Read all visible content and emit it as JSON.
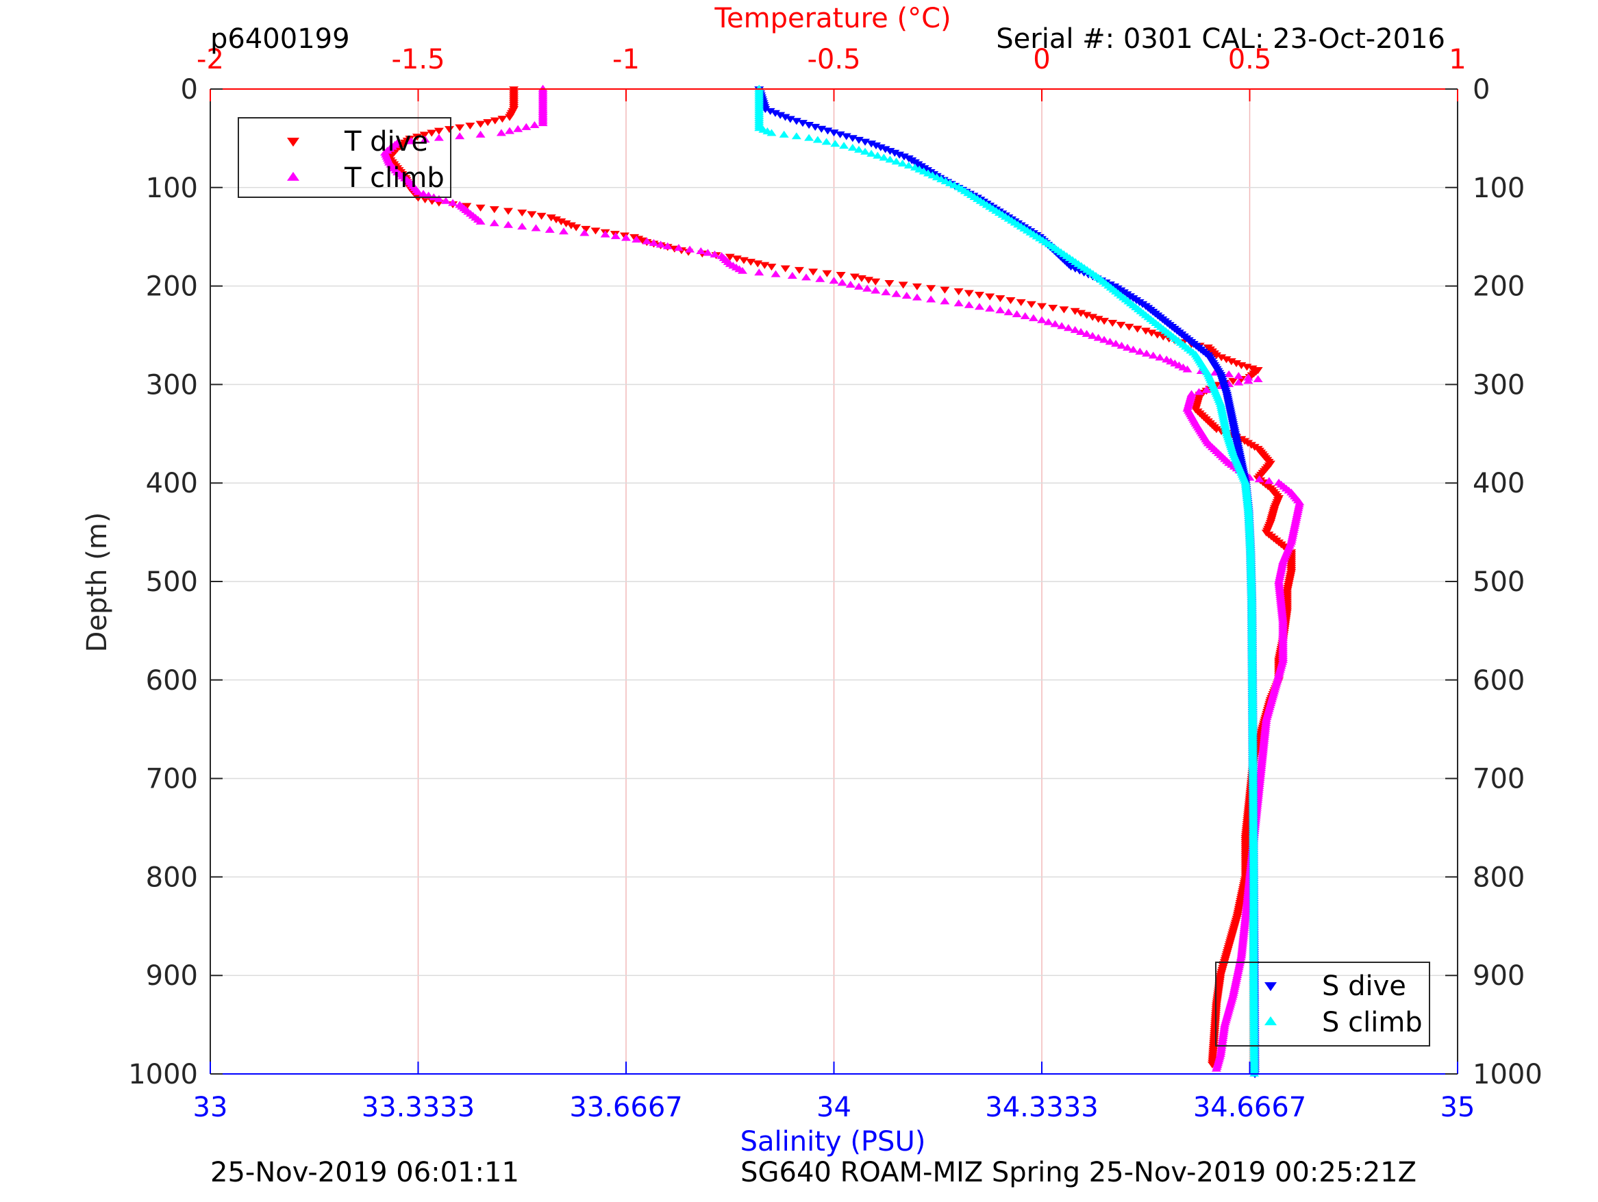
{
  "header": {
    "dive_id": "p6400199",
    "serial": "Serial #: 0301  CAL: 23-Oct-2016"
  },
  "footer": {
    "left": "25-Nov-2019 06:01:11",
    "right": "SG640 ROAM-MIZ Spring 25-Nov-2019 00:25:21Z"
  },
  "colors": {
    "t_dive": "#ff0000",
    "t_climb": "#ff00ff",
    "s_dive": "#0000ff",
    "s_climb": "#00ffff",
    "temp_axis": "#ff0000",
    "sal_axis": "#0000ff",
    "depth_axis": "#262626"
  },
  "chart_data": {
    "type": "scatter",
    "title": "",
    "top_axis": {
      "label": "Temperature (°C)",
      "range": [
        -2,
        1
      ],
      "ticks": [
        -2,
        -1.5,
        -1,
        -0.5,
        0,
        0.5,
        1
      ],
      "tick_labels": [
        "-2",
        "-1.5",
        "-1",
        "-0.5",
        "0",
        "0.5",
        "1"
      ]
    },
    "bottom_axis": {
      "label": "Salinity (PSU)",
      "range": [
        33,
        35
      ],
      "ticks": [
        33,
        33.3333,
        33.6667,
        34,
        34.3333,
        34.6667,
        35
      ],
      "tick_labels": [
        "33",
        "33.3333",
        "33.6667",
        "34",
        "34.3333",
        "34.6667",
        "35"
      ]
    },
    "y_axis": {
      "label": "Depth (m)",
      "range": [
        0,
        1000
      ],
      "reversed": true,
      "ticks": [
        0,
        100,
        200,
        300,
        400,
        500,
        600,
        700,
        800,
        900,
        1000
      ],
      "tick_labels": [
        "0",
        "100",
        "200",
        "300",
        "400",
        "500",
        "600",
        "700",
        "800",
        "900",
        "1000"
      ]
    },
    "grid": "vertical, temperature axis",
    "legend_temperature": {
      "placement": "top-left",
      "entries": [
        "T dive",
        "T climb"
      ]
    },
    "legend_salinity": {
      "placement": "bottom-right",
      "entries": [
        "S dive",
        "S climb"
      ]
    },
    "series": [
      {
        "name": "T dive",
        "axis": "temperature",
        "marker": "triangle-down",
        "points": [
          [
            -1.27,
            0
          ],
          [
            -1.27,
            10
          ],
          [
            -1.27,
            20
          ],
          [
            -1.28,
            28
          ],
          [
            -1.35,
            35
          ],
          [
            -1.45,
            42
          ],
          [
            -1.52,
            50
          ],
          [
            -1.55,
            60
          ],
          [
            -1.57,
            70
          ],
          [
            -1.55,
            80
          ],
          [
            -1.53,
            90
          ],
          [
            -1.52,
            100
          ],
          [
            -1.5,
            110
          ],
          [
            -1.45,
            115
          ],
          [
            -1.35,
            120
          ],
          [
            -1.25,
            125
          ],
          [
            -1.18,
            130
          ],
          [
            -1.12,
            140
          ],
          [
            -1.05,
            145
          ],
          [
            -0.98,
            150
          ],
          [
            -0.95,
            155
          ],
          [
            -0.9,
            160
          ],
          [
            -0.85,
            165
          ],
          [
            -0.75,
            170
          ],
          [
            -0.7,
            175
          ],
          [
            -0.65,
            180
          ],
          [
            -0.55,
            185
          ],
          [
            -0.45,
            190
          ],
          [
            -0.4,
            195
          ],
          [
            -0.3,
            200
          ],
          [
            -0.2,
            205
          ],
          [
            -0.1,
            212
          ],
          [
            0.0,
            220
          ],
          [
            0.08,
            225
          ],
          [
            0.15,
            235
          ],
          [
            0.25,
            245
          ],
          [
            0.32,
            255
          ],
          [
            0.4,
            262
          ],
          [
            0.42,
            270
          ],
          [
            0.48,
            280
          ],
          [
            0.52,
            285
          ],
          [
            0.5,
            292
          ],
          [
            0.42,
            300
          ],
          [
            0.38,
            310
          ],
          [
            0.37,
            325
          ],
          [
            0.42,
            345
          ],
          [
            0.48,
            355
          ],
          [
            0.52,
            365
          ],
          [
            0.55,
            380
          ],
          [
            0.52,
            395
          ],
          [
            0.55,
            405
          ],
          [
            0.57,
            415
          ],
          [
            0.56,
            425
          ],
          [
            0.55,
            440
          ],
          [
            0.54,
            450
          ],
          [
            0.57,
            460
          ],
          [
            0.6,
            470
          ],
          [
            0.6,
            490
          ],
          [
            0.59,
            510
          ],
          [
            0.59,
            530
          ],
          [
            0.58,
            560
          ],
          [
            0.57,
            580
          ],
          [
            0.57,
            600
          ],
          [
            0.55,
            620
          ],
          [
            0.53,
            650
          ],
          [
            0.51,
            680
          ],
          [
            0.5,
            720
          ],
          [
            0.49,
            760
          ],
          [
            0.49,
            800
          ],
          [
            0.47,
            840
          ],
          [
            0.45,
            870
          ],
          [
            0.43,
            900
          ],
          [
            0.42,
            930
          ],
          [
            0.415,
            960
          ],
          [
            0.41,
            990
          ]
        ]
      },
      {
        "name": "T climb",
        "axis": "temperature",
        "marker": "triangle-up",
        "points": [
          [
            -1.2,
            0
          ],
          [
            -1.2,
            20
          ],
          [
            -1.2,
            35
          ],
          [
            -1.3,
            45
          ],
          [
            -1.45,
            50
          ],
          [
            -1.55,
            55
          ],
          [
            -1.58,
            65
          ],
          [
            -1.57,
            75
          ],
          [
            -1.55,
            85
          ],
          [
            -1.52,
            95
          ],
          [
            -1.5,
            105
          ],
          [
            -1.45,
            112
          ],
          [
            -1.4,
            118
          ],
          [
            -1.38,
            125
          ],
          [
            -1.35,
            135
          ],
          [
            -1.25,
            140
          ],
          [
            -1.15,
            145
          ],
          [
            -1.05,
            148
          ],
          [
            -0.95,
            155
          ],
          [
            -0.9,
            160
          ],
          [
            -0.82,
            165
          ],
          [
            -0.77,
            170
          ],
          [
            -0.75,
            178
          ],
          [
            -0.72,
            185
          ],
          [
            -0.6,
            190
          ],
          [
            -0.5,
            195
          ],
          [
            -0.4,
            205
          ],
          [
            -0.3,
            212
          ],
          [
            -0.2,
            218
          ],
          [
            -0.1,
            225
          ],
          [
            0.0,
            235
          ],
          [
            0.08,
            245
          ],
          [
            0.15,
            255
          ],
          [
            0.22,
            265
          ],
          [
            0.3,
            275
          ],
          [
            0.35,
            285
          ],
          [
            0.45,
            290
          ],
          [
            0.52,
            295
          ],
          [
            0.45,
            300
          ],
          [
            0.36,
            310
          ],
          [
            0.35,
            325
          ],
          [
            0.37,
            340
          ],
          [
            0.4,
            360
          ],
          [
            0.45,
            380
          ],
          [
            0.5,
            395
          ],
          [
            0.57,
            400
          ],
          [
            0.6,
            410
          ],
          [
            0.62,
            420
          ],
          [
            0.61,
            440
          ],
          [
            0.6,
            460
          ],
          [
            0.58,
            480
          ],
          [
            0.57,
            500
          ],
          [
            0.58,
            540
          ],
          [
            0.58,
            580
          ],
          [
            0.56,
            610
          ],
          [
            0.54,
            640
          ],
          [
            0.53,
            680
          ],
          [
            0.52,
            720
          ],
          [
            0.51,
            760
          ],
          [
            0.5,
            800
          ],
          [
            0.49,
            840
          ],
          [
            0.48,
            880
          ],
          [
            0.46,
            920
          ],
          [
            0.44,
            950
          ],
          [
            0.43,
            980
          ],
          [
            0.42,
            995
          ]
        ]
      },
      {
        "name": "S dive",
        "axis": "salinity",
        "marker": "triangle-down",
        "points": [
          [
            33.88,
            0
          ],
          [
            33.89,
            20
          ],
          [
            33.93,
            30
          ],
          [
            33.98,
            40
          ],
          [
            34.06,
            55
          ],
          [
            34.12,
            70
          ],
          [
            34.17,
            90
          ],
          [
            34.23,
            110
          ],
          [
            34.28,
            130
          ],
          [
            34.33,
            150
          ],
          [
            34.38,
            180
          ],
          [
            34.45,
            200
          ],
          [
            34.5,
            220
          ],
          [
            34.55,
            245
          ],
          [
            34.6,
            270
          ],
          [
            34.62,
            290
          ],
          [
            34.63,
            310
          ],
          [
            34.64,
            340
          ],
          [
            34.65,
            370
          ],
          [
            34.66,
            400
          ],
          [
            34.665,
            430
          ],
          [
            34.668,
            470
          ],
          [
            34.67,
            520
          ],
          [
            34.671,
            600
          ],
          [
            34.672,
            700
          ],
          [
            34.673,
            800
          ],
          [
            34.674,
            900
          ],
          [
            34.675,
            1000
          ]
        ]
      },
      {
        "name": "S climb",
        "axis": "salinity",
        "marker": "triangle-up",
        "points": [
          [
            33.88,
            0
          ],
          [
            33.88,
            20
          ],
          [
            33.88,
            40
          ],
          [
            33.9,
            45
          ],
          [
            33.96,
            50
          ],
          [
            34.03,
            60
          ],
          [
            34.08,
            70
          ],
          [
            34.13,
            80
          ],
          [
            34.2,
            100
          ],
          [
            34.25,
            120
          ],
          [
            34.3,
            140
          ],
          [
            34.35,
            160
          ],
          [
            34.42,
            190
          ],
          [
            34.48,
            220
          ],
          [
            34.54,
            250
          ],
          [
            34.58,
            270
          ],
          [
            34.6,
            290
          ],
          [
            34.62,
            320
          ],
          [
            34.63,
            350
          ],
          [
            34.64,
            370
          ],
          [
            34.66,
            400
          ],
          [
            34.665,
            430
          ],
          [
            34.668,
            470
          ],
          [
            34.67,
            520
          ],
          [
            34.671,
            600
          ],
          [
            34.672,
            700
          ],
          [
            34.673,
            800
          ],
          [
            34.673,
            900
          ],
          [
            34.674,
            1000
          ]
        ]
      }
    ]
  }
}
